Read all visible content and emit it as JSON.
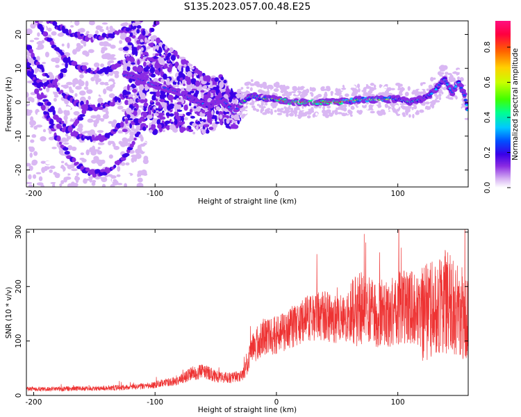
{
  "title": "S135.2023.057.00.48.E25",
  "chart_data": [
    {
      "type": "heatmap",
      "xlabel": "Height of straight line (km)",
      "ylabel": "Frequency (Hz)",
      "xlim": [
        -206,
        158
      ],
      "ylim": [
        -25,
        24
      ],
      "x_ticks": [
        "-200",
        "-100",
        "0",
        "100"
      ],
      "y_ticks": [
        "20",
        "10",
        "0",
        "-10",
        "-20"
      ],
      "colorbar": {
        "label": "Normalized spectral amplitude",
        "ticks": [
          "0.0",
          "0.2",
          "0.4",
          "0.6",
          "0.8"
        ],
        "range": [
          0,
          0.95
        ],
        "colors": [
          "#ffffff",
          "#d9b7f3",
          "#8a2be2",
          "#3a00e8",
          "#0050ff",
          "#00c8ff",
          "#00ff90",
          "#40ff00",
          "#c8ff00",
          "#ffd000",
          "#ff6000",
          "#ff0040",
          "#ff1080"
        ]
      },
      "ridge": [
        [
          -160,
          23
        ],
        [
          -150,
          19
        ],
        [
          -140,
          23
        ],
        [
          -120,
          8
        ],
        [
          -100,
          5
        ],
        [
          -80,
          3
        ],
        [
          -65,
          0
        ],
        [
          -55,
          -1
        ],
        [
          -45,
          1
        ],
        [
          -35,
          -3
        ],
        [
          -28,
          0
        ],
        [
          -20,
          2
        ],
        [
          -10,
          1
        ],
        [
          0,
          1
        ],
        [
          10,
          0
        ],
        [
          30,
          0
        ],
        [
          50,
          0
        ],
        [
          70,
          0.8
        ],
        [
          90,
          0.8
        ],
        [
          100,
          1
        ],
        [
          110,
          0
        ],
        [
          120,
          1
        ],
        [
          130,
          3
        ],
        [
          138,
          7
        ],
        [
          145,
          3
        ],
        [
          150,
          6
        ],
        [
          155,
          2
        ],
        [
          158,
          -3
        ]
      ]
    },
    {
      "type": "line",
      "xlabel": "Height of straight line (km)",
      "ylabel": "SNR (10 * v/v)",
      "xlim": [
        -206,
        158
      ],
      "ylim": [
        0,
        305
      ],
      "x_ticks": [
        "-200",
        "-100",
        "0",
        "100"
      ],
      "y_ticks": [
        "0",
        "100",
        "200",
        "300"
      ],
      "color": "#ee3333",
      "series": [
        {
          "x": [
            -206,
            -180,
            -150,
            -120,
            -105,
            -95,
            -80,
            -70,
            -60,
            -50,
            -40,
            -30,
            -25,
            -20,
            -10,
            0,
            10,
            20,
            30,
            40,
            50,
            60,
            70,
            80,
            90,
            100,
            110,
            120,
            130,
            140,
            150,
            158
          ],
          "values": [
            12,
            12,
            13,
            15,
            18,
            22,
            28,
            40,
            45,
            35,
            32,
            35,
            50,
            85,
            110,
            110,
            120,
            135,
            145,
            145,
            140,
            148,
            160,
            150,
            150,
            160,
            165,
            150,
            160,
            175,
            150,
            140
          ]
        }
      ]
    }
  ]
}
